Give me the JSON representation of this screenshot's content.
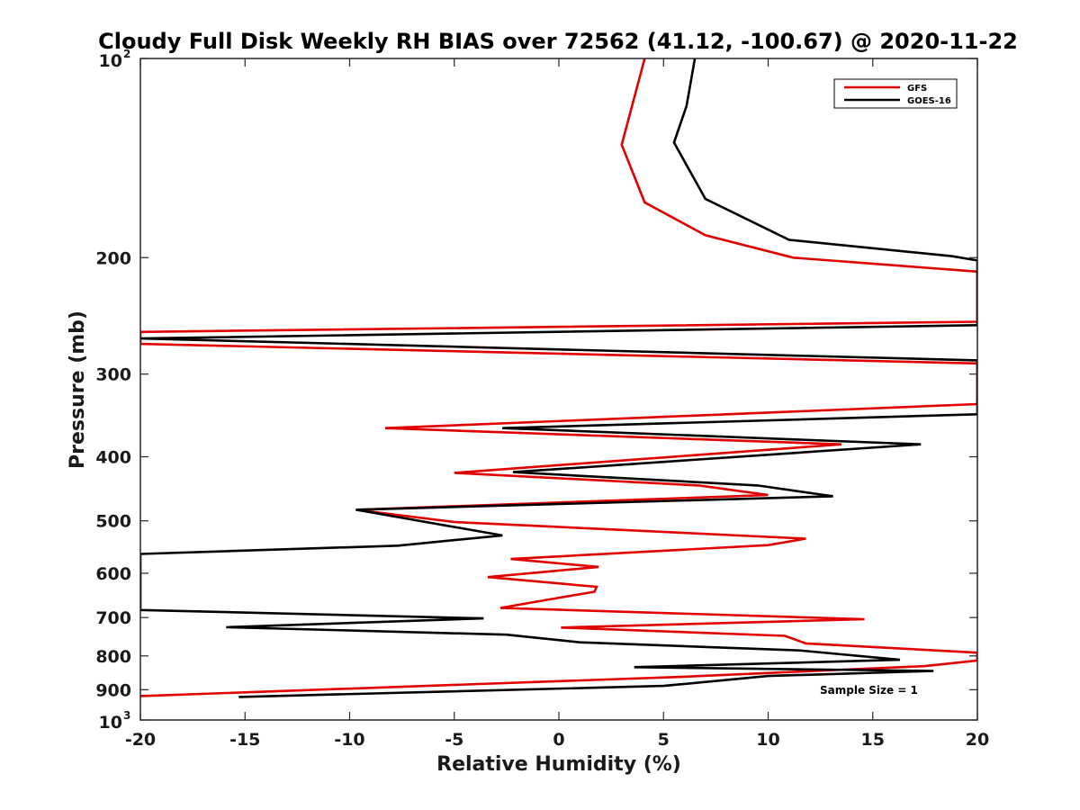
{
  "chart_data": {
    "type": "line",
    "title": "Cloudy Full Disk Weekly RH BIAS over 72562 (41.12, -100.67) @ 2020-11-22",
    "xlabel": "Relative Humidity (%)",
    "ylabel": "Pressure (mb)",
    "xlim": [
      -20,
      20
    ],
    "ylim": [
      100,
      1000
    ],
    "y_scale": "log",
    "y_reversed": true,
    "grid": false,
    "legend_position": "top-right",
    "x_ticks": [
      "-20",
      "-15",
      "-10",
      "-5",
      "0",
      "5",
      "10",
      "15",
      "20"
    ],
    "y_ticks": [
      {
        "base": "10",
        "exp": "2",
        "value": 100
      },
      {
        "base": "200",
        "exp": "",
        "value": 200
      },
      {
        "base": "300",
        "exp": "",
        "value": 300
      },
      {
        "base": "400",
        "exp": "",
        "value": 400
      },
      {
        "base": "500",
        "exp": "",
        "value": 500
      },
      {
        "base": "600",
        "exp": "",
        "value": 600
      },
      {
        "base": "700",
        "exp": "",
        "value": 700
      },
      {
        "base": "800",
        "exp": "",
        "value": 800
      },
      {
        "base": "900",
        "exp": "",
        "value": 900
      },
      {
        "base": "10",
        "exp": "3",
        "value": 1000
      }
    ],
    "annotations": [
      {
        "text": "Sample Size = 1"
      }
    ],
    "series": [
      {
        "name": "GFS",
        "color": "#e00000",
        "points": [
          [
            4.1,
            100
          ],
          [
            3.0,
            135
          ],
          [
            4.1,
            165
          ],
          [
            7.0,
            185
          ],
          [
            11.2,
            200
          ],
          [
            20.0,
            210
          ],
          [
            20.0,
            250
          ],
          [
            -20.0,
            259
          ],
          [
            -20.0,
            270
          ],
          [
            20.0,
            289
          ],
          [
            20.0,
            333
          ],
          [
            -8.3,
            362
          ],
          [
            13.5,
            383
          ],
          [
            -5.0,
            423
          ],
          [
            6.7,
            442
          ],
          [
            10.0,
            457
          ],
          [
            -9.7,
            481
          ],
          [
            -5.0,
            502
          ],
          [
            11.8,
            532
          ],
          [
            10.0,
            544
          ],
          [
            -2.3,
            571
          ],
          [
            1.9,
            587
          ],
          [
            -3.4,
            608
          ],
          [
            1.8,
            629
          ],
          [
            1.7,
            640
          ],
          [
            0.3,
            651
          ],
          [
            -2.8,
            677
          ],
          [
            14.6,
            704
          ],
          [
            0.1,
            725
          ],
          [
            10.8,
            746
          ],
          [
            11.1,
            752
          ],
          [
            11.8,
            766
          ],
          [
            20.0,
            791
          ],
          [
            20.0,
            813
          ],
          [
            17.5,
            829
          ],
          [
            6.0,
            860
          ],
          [
            -20.0,
            920
          ]
        ]
      },
      {
        "name": "GOES-16",
        "color": "#000000",
        "points": [
          [
            6.5,
            100
          ],
          [
            6.1,
            118
          ],
          [
            5.5,
            134
          ],
          [
            7.0,
            163
          ],
          [
            11.0,
            188
          ],
          [
            18.8,
            199
          ],
          [
            20.0,
            202
          ],
          [
            20.0,
            253
          ],
          [
            -20.0,
            265
          ],
          [
            20.0,
            286
          ],
          [
            20.0,
            345
          ],
          [
            -2.7,
            362
          ],
          [
            17.3,
            383
          ],
          [
            -2.2,
            422
          ],
          [
            9.5,
            442
          ],
          [
            13.1,
            459
          ],
          [
            -9.7,
            481
          ],
          [
            -2.7,
            526
          ],
          [
            -7.7,
            545
          ],
          [
            -20.0,
            561
          ],
          [
            -20.0,
            682
          ],
          [
            -3.6,
            702
          ],
          [
            -15.9,
            724
          ],
          [
            -2.5,
            743
          ],
          [
            1.0,
            763
          ],
          [
            11.5,
            785
          ],
          [
            16.3,
            811
          ],
          [
            3.6,
            832
          ],
          [
            17.9,
            843
          ],
          [
            10.0,
            858
          ],
          [
            5.0,
            888
          ],
          [
            -15.3,
            923
          ]
        ]
      }
    ]
  }
}
